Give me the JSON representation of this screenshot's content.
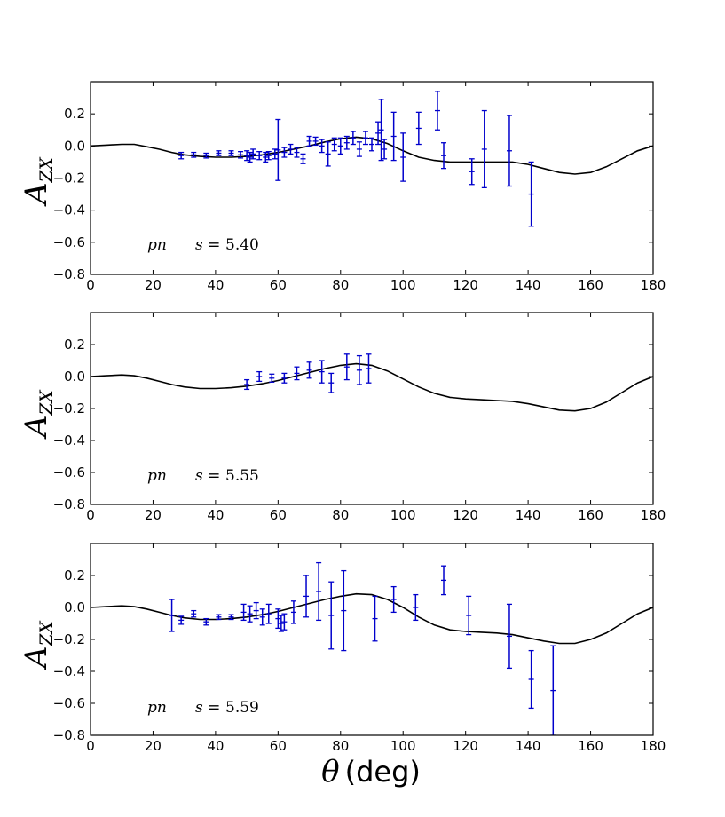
{
  "chart_data": [
    {
      "type": "scatter",
      "panel": "top",
      "ylabel": "A",
      "ylabel_sub": "ZX",
      "xlim": [
        0,
        180
      ],
      "ylim": [
        -0.8,
        0.4
      ],
      "xticks": [
        0,
        20,
        40,
        60,
        80,
        100,
        120,
        140,
        160,
        180
      ],
      "xtick_labels": [
        "0",
        "20",
        "40",
        "60",
        "80",
        "100",
        "120",
        "140",
        "160",
        "180"
      ],
      "yticks": [
        -0.8,
        -0.6,
        -0.4,
        -0.2,
        0.0,
        0.2
      ],
      "ytick_labels": [
        "−0.8",
        "−0.6",
        "−0.4",
        "−0.2",
        "0.0",
        "0.2"
      ],
      "annotation": {
        "reaction": "pn",
        "energy_prefix": "s =",
        "energy_value": "5.40"
      },
      "curve": {
        "x": [
          0,
          5,
          10,
          14,
          18,
          22,
          26,
          30,
          35,
          40,
          45,
          50,
          55,
          60,
          65,
          70,
          75,
          80,
          85,
          90,
          95,
          100,
          105,
          110,
          115,
          120,
          125,
          130,
          135,
          140,
          145,
          150,
          155,
          160,
          165,
          170,
          175,
          180
        ],
        "y": [
          0.0,
          0.005,
          0.01,
          0.01,
          -0.005,
          -0.02,
          -0.04,
          -0.055,
          -0.065,
          -0.07,
          -0.07,
          -0.065,
          -0.055,
          -0.04,
          -0.02,
          0.0,
          0.025,
          0.045,
          0.055,
          0.045,
          0.015,
          -0.03,
          -0.07,
          -0.09,
          -0.1,
          -0.1,
          -0.1,
          -0.1,
          -0.1,
          -0.115,
          -0.14,
          -0.165,
          -0.175,
          -0.165,
          -0.13,
          -0.08,
          -0.03,
          0.0
        ]
      },
      "points": [
        {
          "x": 29,
          "y": -0.06,
          "err": 0.02
        },
        {
          "x": 33,
          "y": -0.055,
          "err": 0.015
        },
        {
          "x": 37,
          "y": -0.06,
          "err": 0.015
        },
        {
          "x": 41,
          "y": -0.045,
          "err": 0.015
        },
        {
          "x": 45,
          "y": -0.045,
          "err": 0.015
        },
        {
          "x": 48,
          "y": -0.055,
          "err": 0.02
        },
        {
          "x": 50,
          "y": -0.06,
          "err": 0.03
        },
        {
          "x": 51,
          "y": -0.07,
          "err": 0.03
        },
        {
          "x": 52,
          "y": -0.05,
          "err": 0.03
        },
        {
          "x": 54,
          "y": -0.06,
          "err": 0.025
        },
        {
          "x": 56,
          "y": -0.07,
          "err": 0.03
        },
        {
          "x": 57,
          "y": -0.06,
          "err": 0.025
        },
        {
          "x": 59,
          "y": -0.05,
          "err": 0.03
        },
        {
          "x": 60,
          "y": -0.025,
          "err": 0.19
        },
        {
          "x": 62,
          "y": -0.04,
          "err": 0.03
        },
        {
          "x": 64,
          "y": -0.02,
          "err": 0.03
        },
        {
          "x": 66,
          "y": -0.04,
          "err": 0.03
        },
        {
          "x": 68,
          "y": -0.08,
          "err": 0.03
        },
        {
          "x": 70,
          "y": 0.03,
          "err": 0.03
        },
        {
          "x": 72,
          "y": 0.03,
          "err": 0.025
        },
        {
          "x": 74,
          "y": 0.0,
          "err": 0.04
        },
        {
          "x": 76,
          "y": -0.05,
          "err": 0.075
        },
        {
          "x": 78,
          "y": 0.01,
          "err": 0.04
        },
        {
          "x": 80,
          "y": 0.0,
          "err": 0.05
        },
        {
          "x": 82,
          "y": 0.02,
          "err": 0.04
        },
        {
          "x": 84,
          "y": 0.05,
          "err": 0.04
        },
        {
          "x": 86,
          "y": -0.02,
          "err": 0.045
        },
        {
          "x": 88,
          "y": 0.05,
          "err": 0.04
        },
        {
          "x": 90,
          "y": 0.01,
          "err": 0.04
        },
        {
          "x": 92,
          "y": 0.08,
          "err": 0.07
        },
        {
          "x": 93,
          "y": 0.1,
          "err": 0.19
        },
        {
          "x": 94,
          "y": -0.02,
          "err": 0.06
        },
        {
          "x": 97,
          "y": 0.06,
          "err": 0.15
        },
        {
          "x": 100,
          "y": -0.07,
          "err": 0.15
        },
        {
          "x": 105,
          "y": 0.11,
          "err": 0.1
        },
        {
          "x": 111,
          "y": 0.22,
          "err": 0.12
        },
        {
          "x": 113,
          "y": -0.06,
          "err": 0.08
        },
        {
          "x": 122,
          "y": -0.16,
          "err": 0.08
        },
        {
          "x": 126,
          "y": -0.02,
          "err": 0.24
        },
        {
          "x": 134,
          "y": -0.03,
          "err": 0.22
        },
        {
          "x": 141,
          "y": -0.3,
          "err": 0.2
        }
      ]
    },
    {
      "type": "scatter",
      "panel": "middle",
      "ylabel": "A",
      "ylabel_sub": "ZX",
      "xlim": [
        0,
        180
      ],
      "ylim": [
        -0.8,
        0.4
      ],
      "xticks": [
        0,
        20,
        40,
        60,
        80,
        100,
        120,
        140,
        160,
        180
      ],
      "xtick_labels": [
        "0",
        "20",
        "40",
        "60",
        "80",
        "100",
        "120",
        "140",
        "160",
        "180"
      ],
      "yticks": [
        -0.8,
        -0.6,
        -0.4,
        -0.2,
        0.0,
        0.2
      ],
      "ytick_labels": [
        "−0.8",
        "−0.6",
        "−0.4",
        "−0.2",
        "0.0",
        "0.2"
      ],
      "annotation": {
        "reaction": "pn",
        "energy_prefix": "s =",
        "energy_value": "5.55"
      },
      "curve": {
        "x": [
          0,
          5,
          10,
          14,
          18,
          22,
          26,
          30,
          35,
          40,
          45,
          50,
          55,
          60,
          65,
          70,
          75,
          80,
          85,
          90,
          95,
          100,
          105,
          110,
          115,
          120,
          125,
          130,
          135,
          140,
          145,
          150,
          155,
          160,
          165,
          170,
          175,
          180
        ],
        "y": [
          0.0,
          0.005,
          0.01,
          0.005,
          -0.01,
          -0.03,
          -0.05,
          -0.065,
          -0.075,
          -0.075,
          -0.07,
          -0.06,
          -0.045,
          -0.025,
          0.0,
          0.025,
          0.05,
          0.07,
          0.08,
          0.07,
          0.035,
          -0.015,
          -0.065,
          -0.105,
          -0.13,
          -0.14,
          -0.145,
          -0.15,
          -0.155,
          -0.17,
          -0.19,
          -0.21,
          -0.215,
          -0.2,
          -0.16,
          -0.1,
          -0.04,
          0.0
        ]
      },
      "points": [
        {
          "x": 50,
          "y": -0.05,
          "err": 0.03
        },
        {
          "x": 54,
          "y": 0.0,
          "err": 0.03
        },
        {
          "x": 58,
          "y": -0.01,
          "err": 0.025
        },
        {
          "x": 62,
          "y": -0.01,
          "err": 0.03
        },
        {
          "x": 66,
          "y": 0.02,
          "err": 0.04
        },
        {
          "x": 70,
          "y": 0.04,
          "err": 0.05
        },
        {
          "x": 74,
          "y": 0.03,
          "err": 0.07
        },
        {
          "x": 77,
          "y": -0.04,
          "err": 0.06
        },
        {
          "x": 82,
          "y": 0.06,
          "err": 0.08
        },
        {
          "x": 86,
          "y": 0.04,
          "err": 0.09
        },
        {
          "x": 89,
          "y": 0.05,
          "err": 0.09
        }
      ]
    },
    {
      "type": "scatter",
      "panel": "bottom",
      "ylabel": "A",
      "ylabel_sub": "ZX",
      "xlabel_symbol": "θ",
      "xlabel_text": "(deg)",
      "xlim": [
        0,
        180
      ],
      "ylim": [
        -0.8,
        0.4
      ],
      "xticks": [
        0,
        20,
        40,
        60,
        80,
        100,
        120,
        140,
        160,
        180
      ],
      "xtick_labels": [
        "0",
        "20",
        "40",
        "60",
        "80",
        "100",
        "120",
        "140",
        "160",
        "180"
      ],
      "yticks": [
        -0.8,
        -0.6,
        -0.4,
        -0.2,
        0.0,
        0.2
      ],
      "ytick_labels": [
        "−0.8",
        "−0.6",
        "−0.4",
        "−0.2",
        "0.0",
        "0.2"
      ],
      "annotation": {
        "reaction": "pn",
        "energy_prefix": "s =",
        "energy_value": "5.59"
      },
      "curve": {
        "x": [
          0,
          5,
          10,
          14,
          18,
          22,
          26,
          30,
          35,
          40,
          45,
          50,
          55,
          60,
          65,
          70,
          75,
          80,
          85,
          90,
          95,
          100,
          105,
          110,
          115,
          120,
          125,
          130,
          135,
          140,
          145,
          150,
          155,
          160,
          165,
          170,
          175,
          180
        ],
        "y": [
          0.0,
          0.005,
          0.01,
          0.005,
          -0.01,
          -0.03,
          -0.05,
          -0.065,
          -0.075,
          -0.075,
          -0.07,
          -0.06,
          -0.045,
          -0.025,
          0.0,
          0.025,
          0.05,
          0.07,
          0.085,
          0.08,
          0.05,
          0.0,
          -0.06,
          -0.11,
          -0.14,
          -0.15,
          -0.155,
          -0.16,
          -0.17,
          -0.19,
          -0.21,
          -0.225,
          -0.225,
          -0.2,
          -0.16,
          -0.1,
          -0.04,
          0.0
        ]
      },
      "points": [
        {
          "x": 26,
          "y": -0.05,
          "err": 0.1
        },
        {
          "x": 29,
          "y": -0.08,
          "err": 0.025
        },
        {
          "x": 33,
          "y": -0.04,
          "err": 0.02
        },
        {
          "x": 37,
          "y": -0.09,
          "err": 0.02
        },
        {
          "x": 41,
          "y": -0.06,
          "err": 0.015
        },
        {
          "x": 45,
          "y": -0.06,
          "err": 0.015
        },
        {
          "x": 49,
          "y": -0.03,
          "err": 0.05
        },
        {
          "x": 51,
          "y": -0.04,
          "err": 0.05
        },
        {
          "x": 53,
          "y": -0.02,
          "err": 0.05
        },
        {
          "x": 55,
          "y": -0.06,
          "err": 0.05
        },
        {
          "x": 57,
          "y": -0.04,
          "err": 0.06
        },
        {
          "x": 60,
          "y": -0.07,
          "err": 0.06
        },
        {
          "x": 61,
          "y": -0.1,
          "err": 0.05
        },
        {
          "x": 62,
          "y": -0.09,
          "err": 0.05
        },
        {
          "x": 65,
          "y": -0.03,
          "err": 0.07
        },
        {
          "x": 69,
          "y": 0.07,
          "err": 0.13
        },
        {
          "x": 73,
          "y": 0.1,
          "err": 0.18
        },
        {
          "x": 77,
          "y": -0.05,
          "err": 0.21
        },
        {
          "x": 81,
          "y": -0.02,
          "err": 0.25
        },
        {
          "x": 91,
          "y": -0.07,
          "err": 0.14
        },
        {
          "x": 97,
          "y": 0.05,
          "err": 0.08
        },
        {
          "x": 104,
          "y": 0.0,
          "err": 0.08
        },
        {
          "x": 113,
          "y": 0.17,
          "err": 0.09
        },
        {
          "x": 121,
          "y": -0.05,
          "err": 0.12
        },
        {
          "x": 134,
          "y": -0.18,
          "err": 0.2
        },
        {
          "x": 141,
          "y": -0.45,
          "err": 0.18
        },
        {
          "x": 148,
          "y": -0.52,
          "err": 0.28
        }
      ]
    }
  ]
}
